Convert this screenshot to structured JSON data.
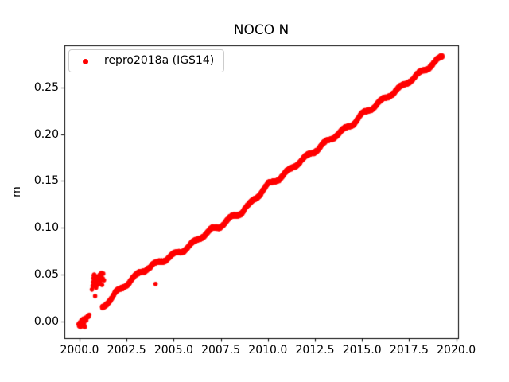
{
  "window": {
    "background": "#ffffff"
  },
  "chart_data": {
    "type": "scatter",
    "title": "NOCO N",
    "xlabel": "",
    "ylabel": "m",
    "xlim": [
      1999.2,
      2020.1
    ],
    "ylim": [
      -0.018,
      0.295
    ],
    "grid": false,
    "xticks": {
      "values": [
        2000.0,
        2002.5,
        2005.0,
        2007.5,
        2010.0,
        2012.5,
        2015.0,
        2017.5,
        2020.0
      ],
      "labels": [
        "2000.0",
        "2002.5",
        "2005.0",
        "2007.5",
        "2010.0",
        "2012.5",
        "2015.0",
        "2017.5",
        "2020.0"
      ]
    },
    "yticks": {
      "values": [
        0.0,
        0.05,
        0.1,
        0.15,
        0.2,
        0.25
      ],
      "labels": [
        "0.00",
        "0.05",
        "0.10",
        "0.15",
        "0.20",
        "0.25"
      ]
    },
    "legend": {
      "label": "repro2018a (IGS14)",
      "location": "upper left",
      "marker_color": "#ff0000"
    },
    "series": [
      {
        "name": "repro2018a (IGS14)",
        "color": "#ff0000",
        "marker": "point",
        "marker_radius_px": 2.8,
        "description": "Dense daily GPS north-position time series forming a continuous linear band from ~(2001.2, 0.016 m) to ~(2019.3, 0.283 m), rate ~0.0148 m/yr, with small seasonal wiggles.",
        "trend_anchors": [
          [
            2001.2,
            0.014
          ],
          [
            2001.5,
            0.021
          ],
          [
            2001.9,
            0.03
          ],
          [
            2002.3,
            0.036
          ],
          [
            2002.7,
            0.044
          ],
          [
            2003.1,
            0.05
          ],
          [
            2003.6,
            0.057
          ],
          [
            2004.1,
            0.062
          ],
          [
            2004.6,
            0.067
          ],
          [
            2005.0,
            0.071
          ],
          [
            2005.5,
            0.076
          ],
          [
            2006.0,
            0.083
          ],
          [
            2006.5,
            0.091
          ],
          [
            2007.0,
            0.098
          ],
          [
            2007.4,
            0.101
          ],
          [
            2008.0,
            0.11
          ],
          [
            2008.6,
            0.117
          ],
          [
            2009.0,
            0.124
          ],
          [
            2009.4,
            0.133
          ],
          [
            2010.0,
            0.146
          ],
          [
            2010.6,
            0.153
          ],
          [
            2011.0,
            0.159
          ],
          [
            2011.5,
            0.168
          ],
          [
            2012.0,
            0.175
          ],
          [
            2012.4,
            0.181
          ],
          [
            2013.0,
            0.19
          ],
          [
            2013.6,
            0.199
          ],
          [
            2014.0,
            0.204
          ],
          [
            2014.6,
            0.213
          ],
          [
            2015.0,
            0.221
          ],
          [
            2015.5,
            0.228
          ],
          [
            2016.0,
            0.235
          ],
          [
            2016.6,
            0.244
          ],
          [
            2017.0,
            0.249
          ],
          [
            2017.5,
            0.257
          ],
          [
            2018.0,
            0.264
          ],
          [
            2018.4,
            0.27
          ],
          [
            2019.0,
            0.279
          ],
          [
            2019.26,
            0.283
          ]
        ],
        "band": {
          "start": 2001.2,
          "end": 2019.26,
          "points_per_year": 130,
          "seasonal_amplitude": 0.0018,
          "noise_amplitude": 0.0013
        },
        "isolated_points": [
          [
            1999.95,
            -0.003
          ],
          [
            1999.98,
            -0.005
          ],
          [
            2000.02,
            -0.001
          ],
          [
            2000.05,
            -0.006
          ],
          [
            2000.08,
            -0.002
          ],
          [
            2000.1,
            0.001
          ],
          [
            2000.12,
            -0.004
          ],
          [
            2000.15,
            0.002
          ],
          [
            2000.17,
            -0.001
          ],
          [
            2000.19,
            -0.005
          ],
          [
            2000.21,
            0.003
          ],
          [
            2000.24,
            -0.003
          ],
          [
            2000.26,
            0.0
          ],
          [
            2000.28,
            -0.006
          ],
          [
            2000.3,
            0.002
          ],
          [
            2000.33,
            0.004
          ],
          [
            2000.36,
            0.001
          ],
          [
            2000.4,
            0.004
          ],
          [
            2000.44,
            0.006
          ],
          [
            2000.48,
            0.005
          ],
          [
            2000.52,
            0.007
          ],
          [
            2000.66,
            0.034
          ],
          [
            2000.7,
            0.038
          ],
          [
            2000.72,
            0.042
          ],
          [
            2000.74,
            0.046
          ],
          [
            2000.76,
            0.049
          ],
          [
            2000.78,
            0.05
          ],
          [
            2000.8,
            0.044
          ],
          [
            2000.82,
            0.04
          ],
          [
            2000.85,
            0.047
          ],
          [
            2000.88,
            0.036
          ],
          [
            2000.9,
            0.043
          ],
          [
            2000.93,
            0.048
          ],
          [
            2000.95,
            0.039
          ],
          [
            2000.83,
            0.027
          ],
          [
            2001.02,
            0.04
          ],
          [
            2001.05,
            0.045
          ],
          [
            2001.08,
            0.05
          ],
          [
            2001.11,
            0.043
          ],
          [
            2001.14,
            0.048
          ],
          [
            2001.17,
            0.052
          ],
          [
            2001.2,
            0.039
          ],
          [
            2001.23,
            0.046
          ],
          [
            2001.26,
            0.051
          ],
          [
            2001.3,
            0.044
          ],
          [
            2004.04,
            0.04
          ]
        ]
      }
    ],
    "colors": {
      "series_red": "#ff0000",
      "spine_black": "#000000",
      "legend_border": "#cccccc"
    }
  }
}
